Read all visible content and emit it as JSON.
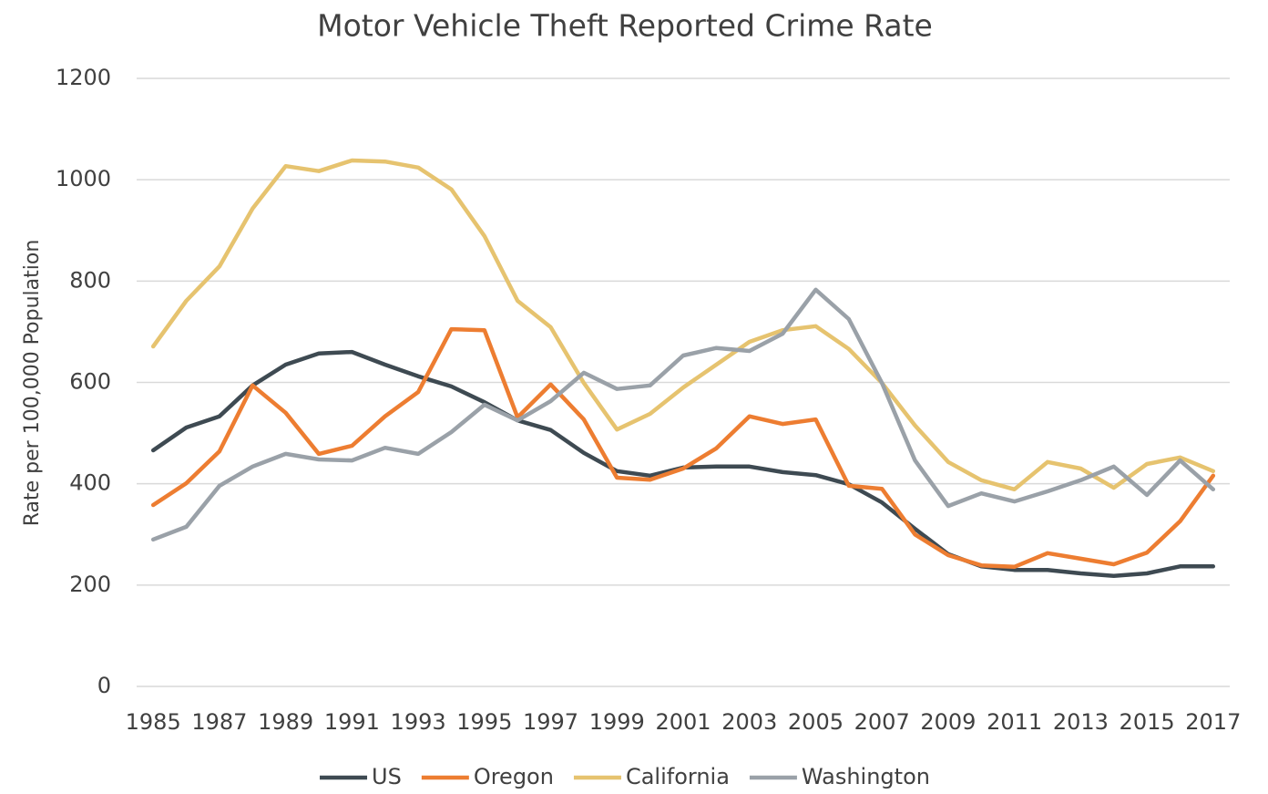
{
  "chart_data": {
    "type": "line",
    "title": "Motor Vehicle Theft Reported Crime Rate",
    "y_label": "Rate per 100,000 Population",
    "categories": [
      "1985",
      null,
      "1987",
      null,
      "1989",
      null,
      "1991",
      null,
      "1993",
      null,
      "1995",
      null,
      "1997",
      null,
      "1999",
      null,
      "2001",
      null,
      "2003",
      null,
      "2005",
      null,
      "2007",
      null,
      "2009",
      null,
      "2011",
      null,
      "2013",
      null,
      "2015",
      null,
      "2017"
    ],
    "series": [
      {
        "name": "US",
        "color": "#3e4a52",
        "values": [
          466,
          511,
          533,
          594,
          635,
          657,
          660,
          635,
          612,
          592,
          561,
          525,
          506,
          461,
          425,
          416,
          432,
          434,
          434,
          423,
          417,
          399,
          363,
          311,
          261,
          237,
          230,
          230,
          223,
          218,
          223,
          237,
          237
        ]
      },
      {
        "name": "Oregon",
        "color": "#ed7d31",
        "values": [
          358,
          401,
          464,
          594,
          540,
          459,
          475,
          533,
          581,
          705,
          703,
          531,
          596,
          527,
          412,
          408,
          430,
          470,
          533,
          518,
          527,
          396,
          390,
          300,
          259,
          239,
          236,
          263,
          252,
          241,
          264,
          326,
          416
        ]
      },
      {
        "name": "California",
        "color": "#e6c36f",
        "values": [
          671,
          761,
          829,
          943,
          1027,
          1017,
          1038,
          1036,
          1024,
          981,
          889,
          761,
          709,
          599,
          507,
          538,
          590,
          635,
          680,
          703,
          711,
          666,
          599,
          515,
          443,
          407,
          389,
          443,
          430,
          392,
          439,
          452,
          425
        ]
      },
      {
        "name": "Washington",
        "color": "#9aa1a8",
        "values": [
          290,
          315,
          396,
          434,
          459,
          448,
          446,
          471,
          459,
          502,
          556,
          525,
          563,
          619,
          587,
          594,
          653,
          668,
          662,
          696,
          783,
          725,
          599,
          446,
          356,
          381,
          365,
          385,
          407,
          434,
          378,
          446,
          389
        ]
      }
    ],
    "ylim": [
      0,
      1200
    ],
    "yticks": [
      0,
      200,
      400,
      600,
      800,
      1000,
      1200
    ],
    "grid": true,
    "legend": "bottom"
  }
}
